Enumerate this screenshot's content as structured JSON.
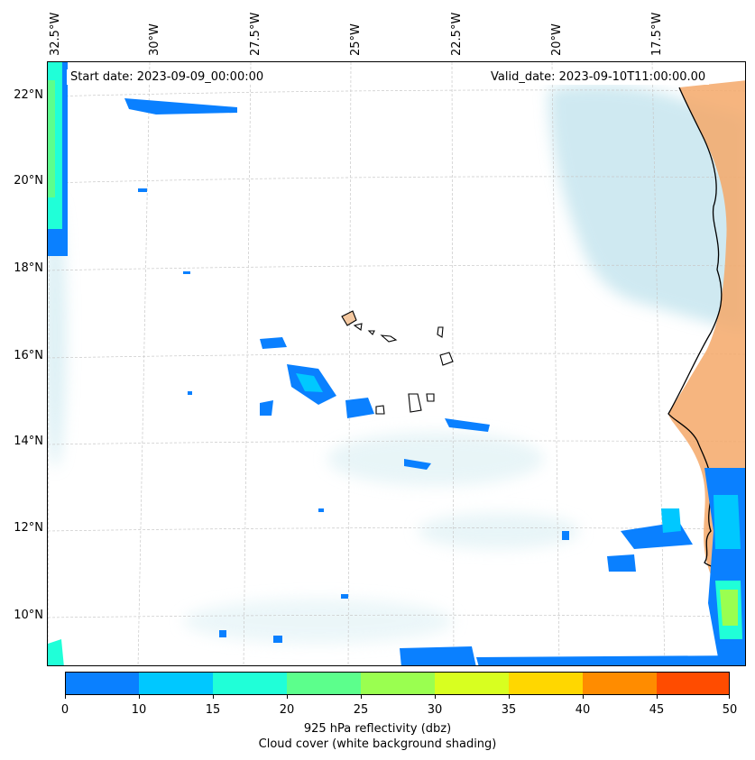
{
  "map": {
    "start_date": "Start date: 2023-09-09_00:00:00",
    "valid_date": "Valid_date: 2023-09-10T11:00:00.00",
    "longitude_labels": [
      "32.5°W",
      "30°W",
      "27.5°W",
      "25°W",
      "22.5°W",
      "20°W",
      "17.5°W"
    ],
    "latitude_labels": [
      "22°N",
      "20°N",
      "18°N",
      "16°N",
      "14°N",
      "12°N",
      "10°N"
    ]
  },
  "colorbar": {
    "ticks": [
      "0",
      "10",
      "15",
      "20",
      "25",
      "30",
      "35",
      "40",
      "45",
      "50"
    ],
    "colors": [
      "#0a80ff",
      "#00c8ff",
      "#20ffd8",
      "#5cff8c",
      "#9aff50",
      "#d8ff20",
      "#ffd700",
      "#ff8c00",
      "#ff4c00"
    ],
    "label_line1": "925 hPa reflectivity (dbz)",
    "label_line2": "Cloud cover (white background shading)"
  },
  "colors": {
    "land": "#f4a868",
    "cloud": "#a8d8e6",
    "coastline": "#000000",
    "grid": "#c8c8c8"
  }
}
